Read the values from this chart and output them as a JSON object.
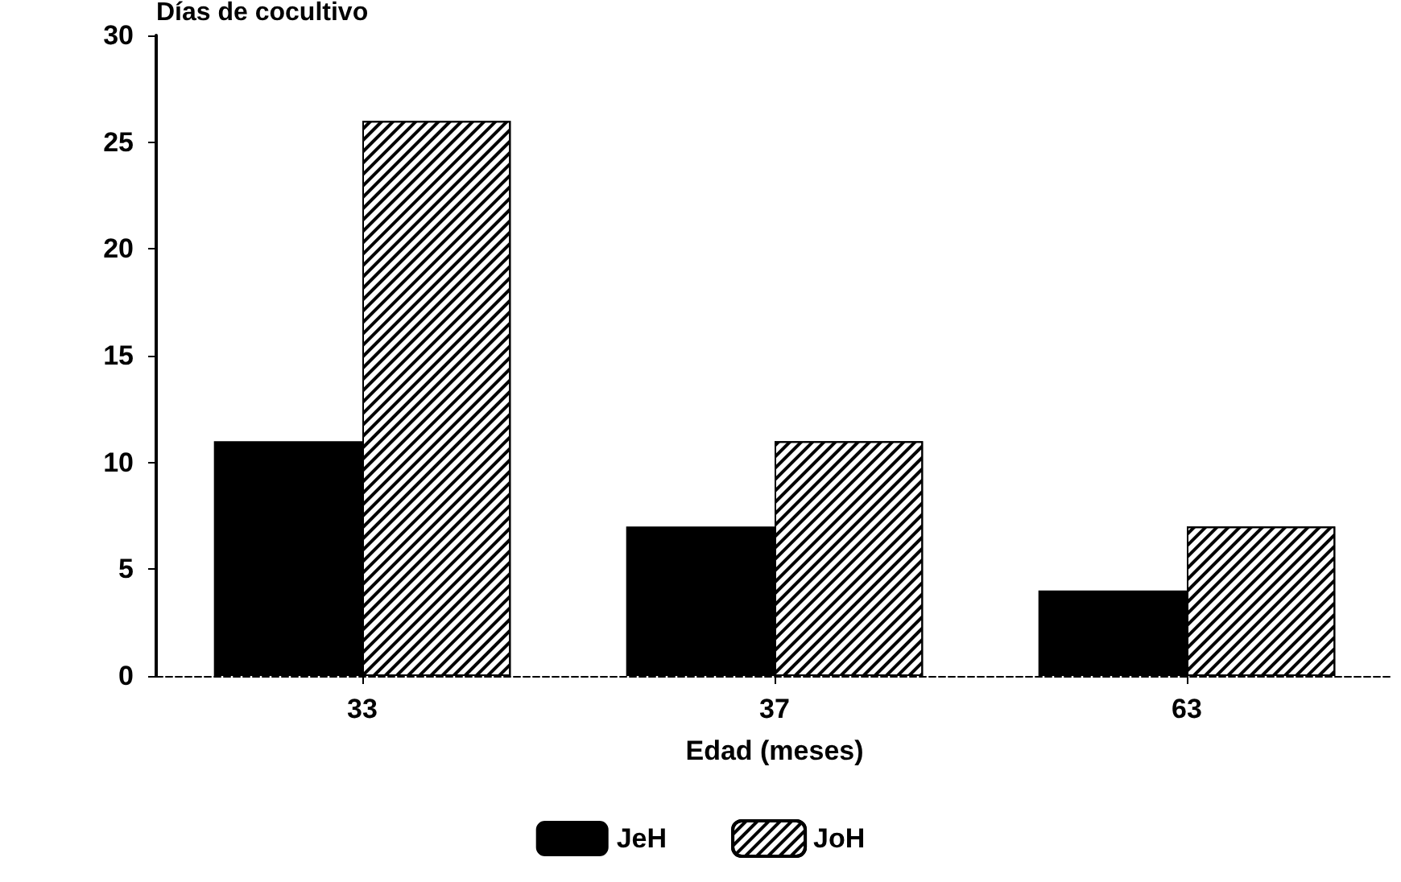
{
  "chart_data": {
    "type": "bar",
    "ylabel": "Días de cocultivo",
    "xlabel": "Edad (meses)",
    "categories": [
      "33",
      "37",
      "63"
    ],
    "series": [
      {
        "name": "JeH",
        "color": "#000000",
        "values": [
          11,
          7,
          4
        ]
      },
      {
        "name": "JoH",
        "color": "#000000",
        "values": [
          26,
          11,
          7
        ]
      }
    ],
    "ylim": [
      0,
      30
    ],
    "yticks": [
      0,
      5,
      10,
      15,
      20,
      25,
      30
    ],
    "grid": false,
    "legend": "bottom"
  }
}
